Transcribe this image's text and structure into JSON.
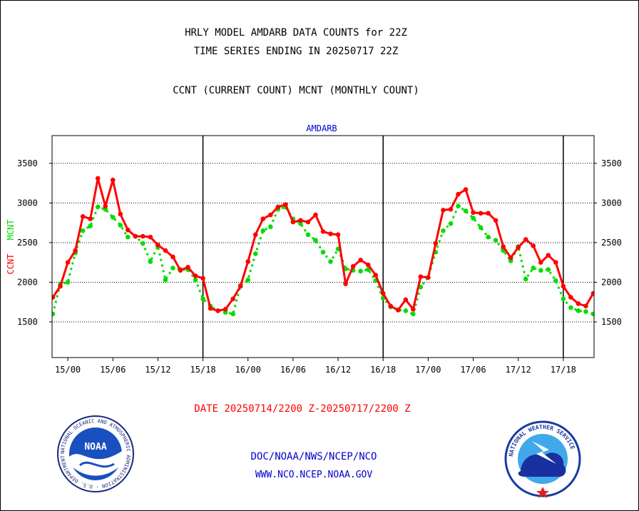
{
  "titles": {
    "line1": "HRLY MODEL AMDARB DATA COUNTS for 22Z",
    "line2": "TIME SERIES ENDING IN 20250717 22Z",
    "subtitle": "CCNT (CURRENT COUNT) MCNT (MONTHLY COUNT)",
    "date_range": "DATE 20250714/2200 Z-20250717/2200 Z",
    "footer_org": "DOC/NOAA/NWS/NCEP/NCO",
    "footer_url": "WWW.NCO.NCEP.NOAA.GOV"
  },
  "logos": {
    "noaa_text": "NOAA",
    "noaa_ring_text": "NATIONAL OCEANIC AND ATMOSPHERIC ADMINISTRATION · U.S. DEPARTMENT OF COMMERCE ·",
    "nws_ring_text": "NATIONAL WEATHER SERVICE"
  },
  "colors": {
    "ccnt": "#ff0000",
    "mcnt": "#00dd00",
    "plot_label": "#0000cc"
  },
  "chart_data": {
    "type": "line",
    "title": "AMDARB",
    "ylabel_parts": [
      {
        "text": "CCNT",
        "color": "#ff0000"
      },
      {
        "text": "MCNT",
        "color": "#00dd00"
      }
    ],
    "ylim": [
      1050,
      3850
    ],
    "yticks": [
      1500,
      2000,
      2500,
      3000,
      3500
    ],
    "xlim_hours": [
      -0.1,
      72.1
    ],
    "xticks": [
      {
        "label": "15/00",
        "hour": 2
      },
      {
        "label": "15/06",
        "hour": 8
      },
      {
        "label": "15/12",
        "hour": 14
      },
      {
        "label": "15/18",
        "hour": 20
      },
      {
        "label": "16/00",
        "hour": 26
      },
      {
        "label": "16/06",
        "hour": 32
      },
      {
        "label": "16/12",
        "hour": 38
      },
      {
        "label": "16/18",
        "hour": 44
      },
      {
        "label": "17/00",
        "hour": 50
      },
      {
        "label": "17/06",
        "hour": 56
      },
      {
        "label": "17/12",
        "hour": 62
      },
      {
        "label": "17/18",
        "hour": 68
      }
    ],
    "day_lines_hours": [
      20,
      44,
      68
    ],
    "grid": "horizontal-dotted",
    "series": [
      {
        "name": "CCNT",
        "values": [
          1810,
          1950,
          2250,
          2400,
          2830,
          2800,
          3310,
          2960,
          3290,
          2860,
          2660,
          2580,
          2580,
          2570,
          2470,
          2400,
          2320,
          2150,
          2190,
          2080,
          2050,
          1670,
          1640,
          1660,
          1790,
          1950,
          2260,
          2600,
          2800,
          2850,
          2950,
          2980,
          2760,
          2780,
          2760,
          2850,
          2640,
          2610,
          2600,
          1980,
          2200,
          2280,
          2220,
          2090,
          1860,
          1700,
          1650,
          1780,
          1660,
          2070,
          2060,
          2490,
          2910,
          2920,
          3110,
          3170,
          2880,
          2870,
          2870,
          2780,
          2450,
          2310,
          2440,
          2540,
          2460,
          2250,
          2340,
          2250,
          1950,
          1810,
          1730,
          1700,
          1860
        ]
      },
      {
        "name": "MCNT",
        "values": [
          1600,
          1980,
          2000,
          2370,
          2650,
          2710,
          2950,
          2920,
          2820,
          2720,
          2570,
          2580,
          2490,
          2260,
          2460,
          2030,
          2180,
          2160,
          2160,
          2030,
          1790,
          1700,
          1640,
          1620,
          1600,
          1960,
          2030,
          2360,
          2650,
          2700,
          2920,
          2950,
          2800,
          2740,
          2600,
          2530,
          2380,
          2260,
          2420,
          2170,
          2150,
          2140,
          2160,
          2020,
          1800,
          1690,
          1650,
          1640,
          1600,
          1940,
          2060,
          2380,
          2650,
          2740,
          2960,
          2900,
          2810,
          2690,
          2570,
          2530,
          2400,
          2270,
          2450,
          2040,
          2180,
          2150,
          2160,
          2020,
          1790,
          1680,
          1640,
          1630,
          1600
        ]
      }
    ]
  }
}
